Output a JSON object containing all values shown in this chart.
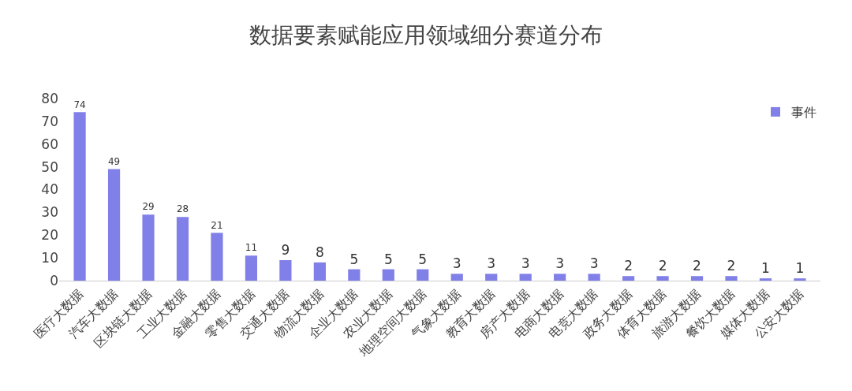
{
  "chart_data": {
    "type": "bar",
    "title": "数据要素赋能应用领域细分赛道分布",
    "categories": [
      "医疗大数据",
      "汽车大数据",
      "区块链大数据",
      "工业大数据",
      "金融大数据",
      "零售大数据",
      "交通大数据",
      "物流大数据",
      "企业大数据",
      "农业大数据",
      "地理空间大数据",
      "气象大数据",
      "教育大数据",
      "房产大数据",
      "电商大数据",
      "电竞大数据",
      "政务大数据",
      "体育大数据",
      "旅游大数据",
      "餐饮大数据",
      "媒体大数据",
      "公安大数据"
    ],
    "series": [
      {
        "name": "事件",
        "color": "#8080e8",
        "values": [
          74,
          49,
          29,
          28,
          21,
          11,
          9,
          8,
          5,
          5,
          5,
          3,
          3,
          3,
          3,
          3,
          2,
          2,
          2,
          2,
          1,
          1
        ]
      }
    ],
    "ylim": [
      0,
      80
    ],
    "yticks": [
      0,
      10,
      20,
      30,
      40,
      50,
      60,
      70,
      80
    ],
    "grid": false,
    "legend": "top right",
    "data_labels": true
  }
}
